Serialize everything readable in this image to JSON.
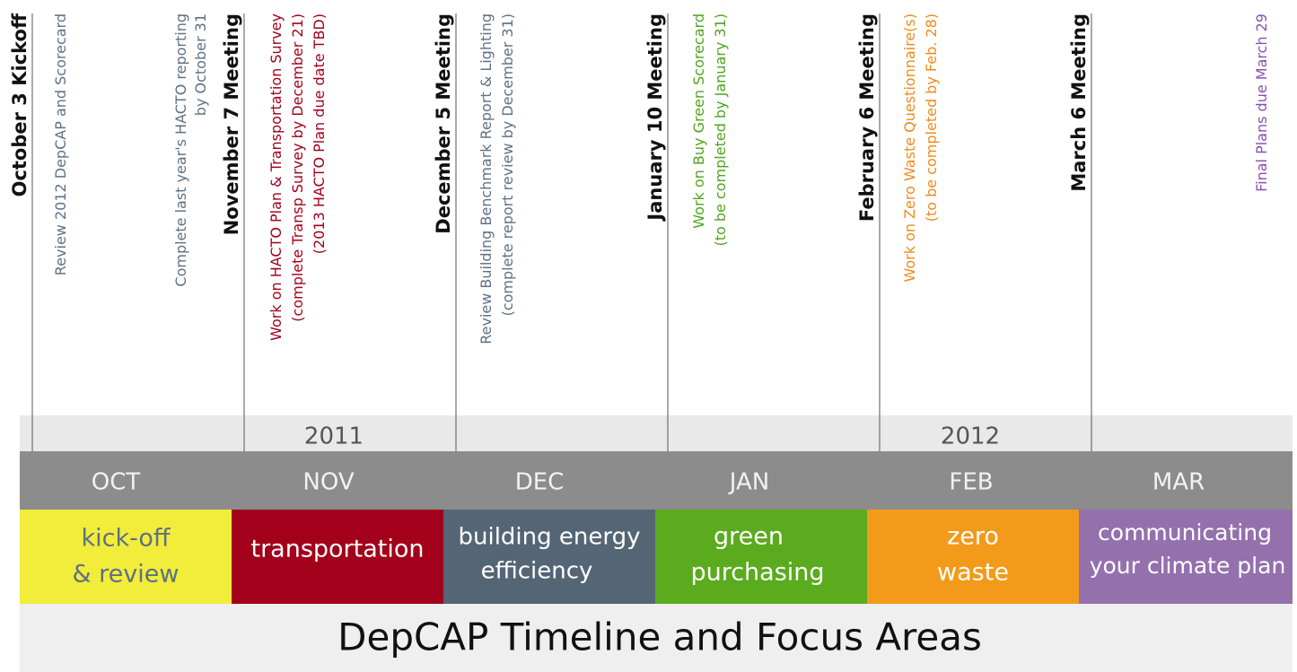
{
  "milestones": [
    {
      "lines": [
        "October 3 Kickoff"
      ]
    },
    {
      "lines": [
        "Review 2012 DepCAP and Scorecard"
      ]
    },
    {
      "lines": [
        "Complete last year's HACTO reporting",
        "by October 31"
      ]
    },
    {
      "lines": [
        "November 7 Meeting"
      ]
    },
    {
      "lines": [
        "Work on HACTO Plan & Transportation Survey",
        "(complete Transp Survey by  December 21)",
        "(2013 HACTO Plan due date TBD)"
      ]
    },
    {
      "lines": [
        "December 5 Meeting"
      ]
    },
    {
      "lines": [
        "Review Building Benchmark Report & Lighting",
        "(complete report review by December 31)"
      ]
    },
    {
      "lines": [
        "January 10 Meeting"
      ]
    },
    {
      "lines": [
        "Work on Buy Green Scorecard",
        "(to be completed by January 31)"
      ]
    },
    {
      "lines": [
        "February 6 Meeting"
      ]
    },
    {
      "lines": [
        "Work on Zero Waste Questionnaire(s)",
        "(to be completed by Feb. 28)"
      ]
    },
    {
      "lines": [
        "March 6 Meeting"
      ]
    },
    {
      "lines": [
        "Final Plans due March 29"
      ]
    }
  ],
  "years": [
    "2011",
    "2012"
  ],
  "months": [
    "OCT",
    "NOV",
    "DEC",
    "JAN",
    "FEB",
    "MAR"
  ],
  "focus_areas": [
    {
      "lines": [
        "kick-off",
        "& review"
      ]
    },
    {
      "lines": [
        "transportation"
      ]
    },
    {
      "lines": [
        "building energy",
        "efficiency"
      ]
    },
    {
      "lines": [
        "green",
        "purchasing"
      ]
    },
    {
      "lines": [
        "zero",
        "waste"
      ]
    },
    {
      "lines": [
        "communicating",
        "your climate plan"
      ]
    }
  ],
  "title": "DepCAP Timeline and Focus Areas"
}
